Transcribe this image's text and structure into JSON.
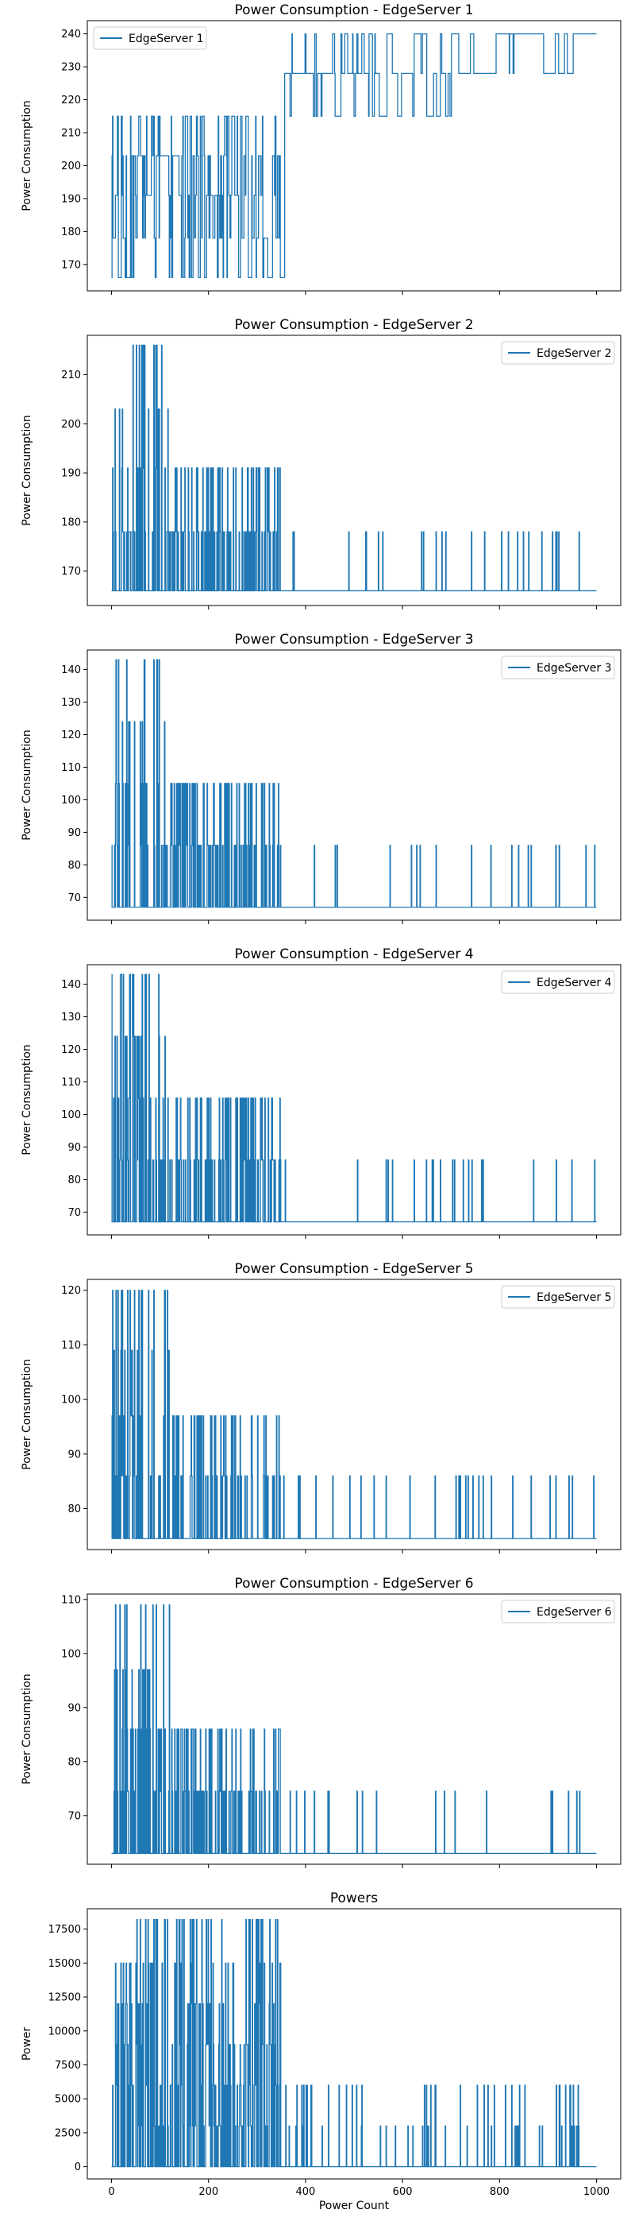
{
  "figure": {
    "line_color": "#1f77b4",
    "shared_xlabel": "Power Count",
    "x_ticks": [
      0,
      200,
      400,
      600,
      800,
      1000
    ],
    "xlim": [
      -50,
      1050
    ]
  },
  "chart_data": [
    {
      "type": "line",
      "title": "Power Consumption - EdgeServer 1",
      "xlabel": "",
      "ylabel": "Power Consumption",
      "ylim": [
        162,
        244
      ],
      "y_ticks": [
        170,
        180,
        190,
        200,
        210,
        220,
        230,
        240
      ],
      "legend_loc": "upper-left",
      "grid": false,
      "series": [
        {
          "name": "EdgeServer 1",
          "color": "#1f77b4",
          "levels": [
            166,
            178,
            191,
            203,
            215,
            228,
            240
          ],
          "breaks": [
            [
              0,
              191
            ],
            [
              350,
              215
            ],
            [
              390,
              228
            ],
            [
              560,
              215
            ],
            [
              700,
              228
            ],
            [
              740,
              240
            ],
            [
              960,
              228
            ],
            [
              1000,
              228
            ]
          ]
        }
      ]
    },
    {
      "type": "line",
      "title": "Power Consumption - EdgeServer 2",
      "xlabel": "",
      "ylabel": "Power Consumption",
      "ylim": [
        163,
        218
      ],
      "y_ticks": [
        170,
        180,
        190,
        200,
        210
      ],
      "legend_loc": "upper-right",
      "grid": false,
      "series": [
        {
          "name": "EdgeServer 2",
          "color": "#1f77b4",
          "levels": [
            166,
            178,
            191,
            203,
            216
          ],
          "breaks": [
            [
              0,
              166
            ],
            [
              1000,
              166
            ]
          ]
        }
      ]
    },
    {
      "type": "line",
      "title": "Power Consumption - EdgeServer 3",
      "xlabel": "",
      "ylabel": "Power Consumption",
      "ylim": [
        63,
        146
      ],
      "y_ticks": [
        70,
        80,
        90,
        100,
        110,
        120,
        130,
        140
      ],
      "legend_loc": "upper-right",
      "grid": false,
      "series": [
        {
          "name": "EdgeServer 3",
          "color": "#1f77b4",
          "levels": [
            67,
            86,
            105,
            124,
            143
          ],
          "breaks": [
            [
              0,
              67
            ],
            [
              1000,
              67
            ]
          ]
        }
      ]
    },
    {
      "type": "line",
      "title": "Power Consumption - EdgeServer 4",
      "xlabel": "",
      "ylabel": "Power Consumption",
      "ylim": [
        63,
        146
      ],
      "y_ticks": [
        70,
        80,
        90,
        100,
        110,
        120,
        130,
        140
      ],
      "legend_loc": "upper-right",
      "grid": false,
      "series": [
        {
          "name": "EdgeServer 4",
          "color": "#1f77b4",
          "levels": [
            67,
            86,
            105,
            124,
            143
          ],
          "breaks": [
            [
              0,
              67
            ],
            [
              1000,
              67
            ]
          ]
        }
      ]
    },
    {
      "type": "line",
      "title": "Power Consumption - EdgeServer 5",
      "xlabel": "",
      "ylabel": "Power Consumption",
      "ylim": [
        72.5,
        122
      ],
      "y_ticks": [
        80,
        90,
        100,
        110,
        120
      ],
      "legend_loc": "upper-right",
      "grid": false,
      "series": [
        {
          "name": "EdgeServer 5",
          "color": "#1f77b4",
          "levels": [
            74.5,
            86,
            97,
            109,
            120
          ],
          "breaks": [
            [
              0,
              74.5
            ],
            [
              1000,
              86
            ]
          ]
        }
      ]
    },
    {
      "type": "line",
      "title": "Power Consumption - EdgeServer 6",
      "xlabel": "",
      "ylabel": "Power Consumption",
      "ylim": [
        61,
        111
      ],
      "y_ticks": [
        70,
        80,
        90,
        100,
        110
      ],
      "legend_loc": "upper-right",
      "grid": false,
      "series": [
        {
          "name": "EdgeServer 6",
          "color": "#1f77b4",
          "levels": [
            63,
            74.5,
            86,
            97,
            109
          ],
          "breaks": [
            [
              0,
              63
            ],
            [
              1000,
              63
            ]
          ]
        }
      ]
    },
    {
      "type": "line",
      "title": "Powers",
      "xlabel": "Power Count",
      "ylabel": "Power",
      "ylim": [
        -900,
        19000
      ],
      "y_ticks": [
        0,
        2500,
        5000,
        7500,
        10000,
        12500,
        15000,
        17500
      ],
      "legend_loc": "none",
      "grid": false,
      "series": [
        {
          "name": "",
          "color": "#1f77b4",
          "levels": [
            0,
            3000,
            6000,
            9000,
            12000,
            15000,
            18200
          ],
          "breaks": [
            [
              0,
              3000
            ],
            [
              1000,
              3000
            ]
          ]
        }
      ]
    }
  ]
}
